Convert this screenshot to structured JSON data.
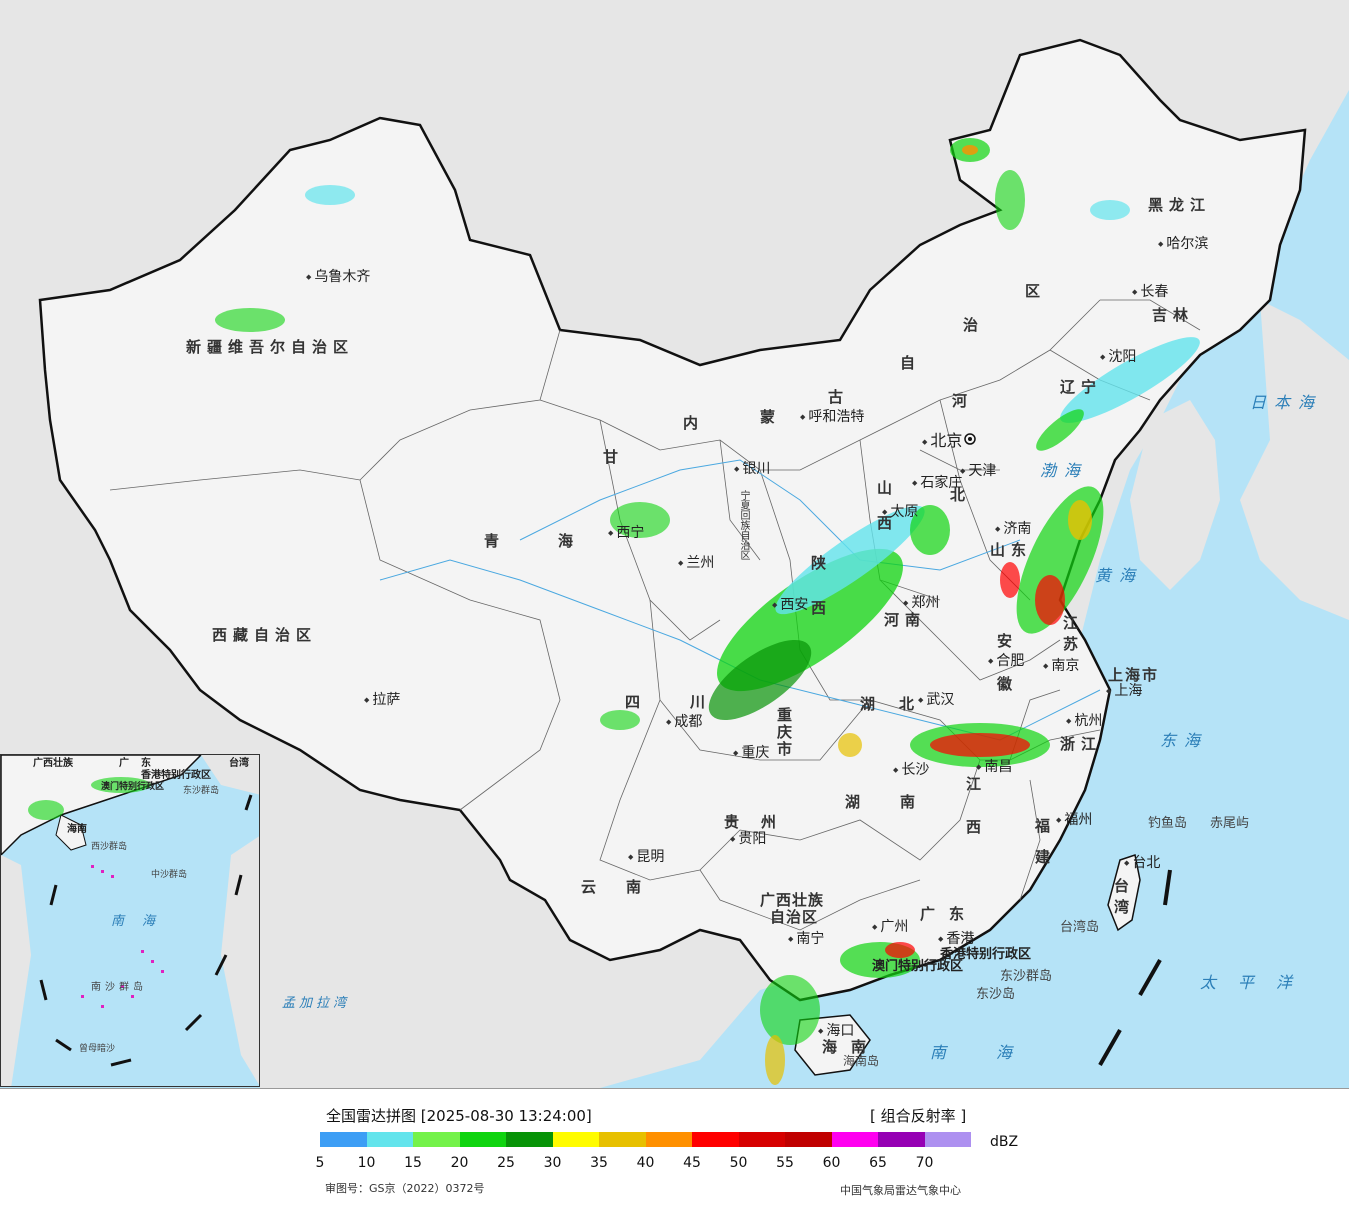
{
  "provinces": {
    "xinjiang": "新疆维吾尔自治区",
    "xizang": "西藏自治区",
    "qinghai_1": "青",
    "qinghai_2": "海",
    "gansu": "甘",
    "neimeng_1": "内",
    "neimeng_2": "蒙",
    "neimeng_3": "古",
    "neimeng_4": "自",
    "neimeng_5": "治",
    "neimeng_6": "区",
    "heilongjiang": "黑龙江",
    "jilin": "吉林",
    "liaoning": "辽宁",
    "hebei_1": "河",
    "hebei_2": "北",
    "shanxi": "山西",
    "shaanxi": "陕西",
    "ningxia": "宁夏回族自治区",
    "shandong": "山东",
    "henan": "河南",
    "jiangsu": "江苏",
    "anhui": "安徽",
    "hubei": "湖北",
    "sichuan": "四川",
    "chongqing": "重庆市",
    "shanghai": "上海市",
    "zhejiang": "浙江",
    "hunan": "湖南",
    "jiangxi": "江西",
    "guizhou": "贵州",
    "fujian": "福建",
    "yunnan": "云南",
    "guangxi_1": "广西壮族",
    "guangxi_2": "自治区",
    "guangdong": "广东",
    "taiwan": "台湾",
    "hainan": "海南",
    "xianggang": "香港特别行政区",
    "aomen": "澳门特别行政区",
    "gansu_city": "兰州",
    "tianjin": "天津"
  },
  "cities": {
    "urumqi": "乌鲁木齐",
    "lhasa": "拉萨",
    "xining": "西宁",
    "lanzhou": "兰州",
    "yinchuan": "银川",
    "hohhot": "呼和浩特",
    "beijing": "北京",
    "tianjin": "天津",
    "shijiazhuang": "石家庄",
    "taiyuan": "太原",
    "jinan": "济南",
    "zhengzhou": "郑州",
    "xian": "西安",
    "chengdu": "成都",
    "chongqing": "重庆",
    "wuhan": "武汉",
    "hefei": "合肥",
    "nanjing": "南京",
    "shanghai": "上海",
    "hangzhou": "杭州",
    "nanchang": "南昌",
    "changsha": "长沙",
    "guiyang": "贵阳",
    "kunming": "昆明",
    "nanning": "南宁",
    "guangzhou": "广州",
    "xianggang": "香港",
    "fuzhou": "福州",
    "taibei": "台北",
    "haikou": "海口",
    "shenyang": "沈阳",
    "changchun": "长春",
    "harbin": "哈尔滨"
  },
  "seas": {
    "riben": "日本海",
    "bohai": "渤海",
    "huanghai": "黄海",
    "donghai": "东海",
    "taipingyang": "太平洋",
    "nanhai": "南海",
    "mengjiala": "孟加拉湾"
  },
  "islands": {
    "diaoyu": "钓鱼岛",
    "chiwei": "赤尾屿",
    "dongsha": "东沙群岛",
    "dongsha2": "东沙岛",
    "taiwan_island": "台湾岛",
    "hainan_island": "海南岛"
  },
  "inset": {
    "labels": [
      "广西壮族",
      "广东",
      "香港特别行政区",
      "澳门特别行政区",
      "台湾",
      "海南",
      "东沙群岛",
      "西沙群岛",
      "中沙群岛",
      "南海",
      "南沙群岛",
      "曾母暗沙"
    ]
  },
  "legend": {
    "title": "全国雷达拼图 [2025-08-30 13:24:00]",
    "product": "[ 组合反射率 ]",
    "unit": "dBZ",
    "ticks": [
      "5",
      "10",
      "15",
      "20",
      "25",
      "30",
      "35",
      "40",
      "45",
      "50",
      "55",
      "60",
      "65",
      "70"
    ],
    "colors": [
      "#3d9ef5",
      "#63e4ec",
      "#74f24a",
      "#0fd40f",
      "#079307",
      "#fffc00",
      "#e7c000",
      "#ff9000",
      "#ff0000",
      "#d60000",
      "#c00000",
      "#ff00f0",
      "#9600b4",
      "#ad90f0"
    ],
    "review_no": "审图号：GS京（2022）0372号",
    "publisher": "中国气象局雷达气象中心"
  }
}
